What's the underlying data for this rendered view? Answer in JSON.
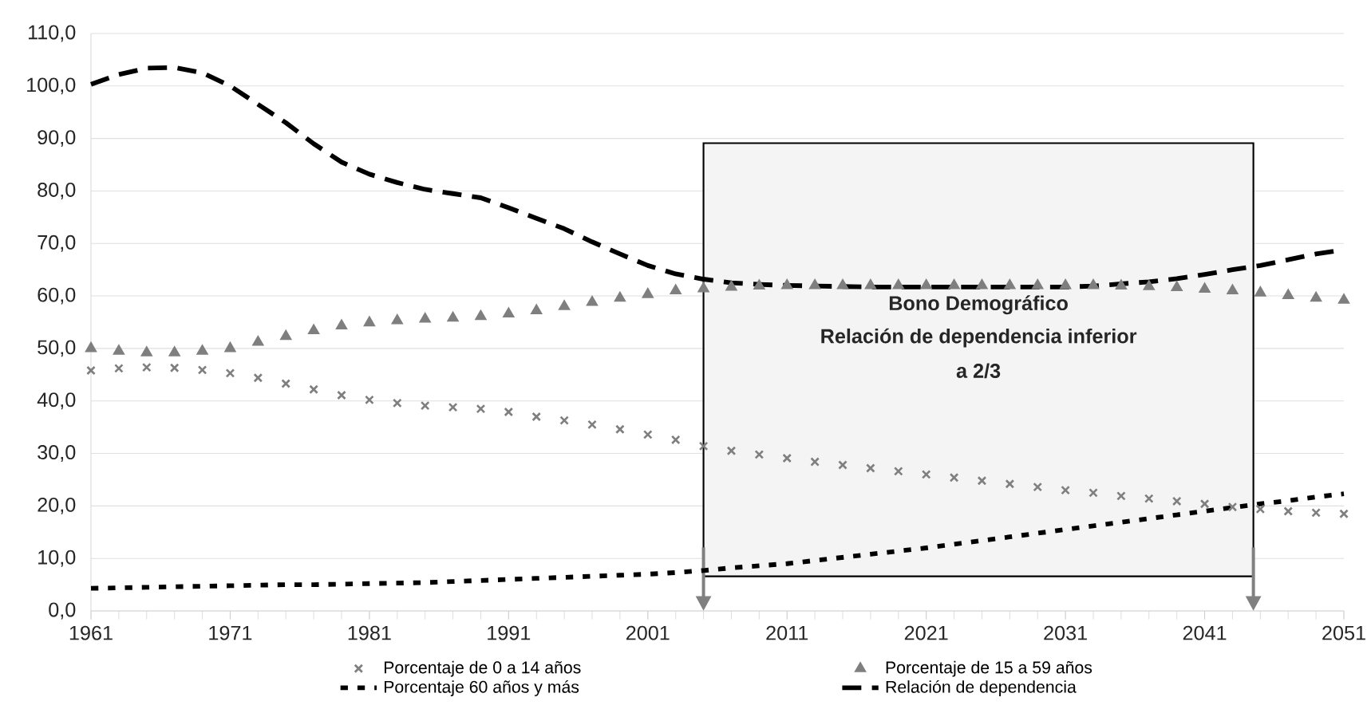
{
  "chart_data": {
    "type": "line",
    "x": [
      1961,
      1963,
      1965,
      1967,
      1969,
      1971,
      1973,
      1975,
      1977,
      1979,
      1981,
      1983,
      1985,
      1987,
      1989,
      1991,
      1993,
      1995,
      1997,
      1999,
      2001,
      2003,
      2005,
      2007,
      2009,
      2011,
      2013,
      2015,
      2017,
      2019,
      2021,
      2023,
      2025,
      2027,
      2029,
      2031,
      2033,
      2035,
      2037,
      2039,
      2041,
      2043,
      2045,
      2047,
      2049,
      2051
    ],
    "series": [
      {
        "name": "Porcentaje de 0 a 14 años",
        "type": "scatter",
        "marker": "cross",
        "color": "#7f7f7f",
        "values": [
          45.8,
          46.2,
          46.4,
          46.3,
          45.9,
          45.3,
          44.4,
          43.3,
          42.2,
          41.1,
          40.2,
          39.6,
          39.1,
          38.8,
          38.5,
          37.9,
          37.0,
          36.3,
          35.5,
          34.6,
          33.6,
          32.6,
          31.4,
          30.5,
          29.8,
          29.1,
          28.4,
          27.8,
          27.2,
          26.6,
          26.0,
          25.4,
          24.8,
          24.2,
          23.6,
          23.0,
          22.5,
          21.9,
          21.4,
          20.9,
          20.4,
          19.8,
          19.4,
          19.0,
          18.7,
          18.5
        ]
      },
      {
        "name": "Porcentaje de 15 a 59 años",
        "type": "scatter",
        "marker": "triangle",
        "color": "#7f7f7f",
        "values": [
          50.0,
          49.5,
          49.2,
          49.2,
          49.5,
          50.0,
          51.2,
          52.3,
          53.4,
          54.3,
          54.9,
          55.3,
          55.6,
          55.8,
          56.1,
          56.6,
          57.2,
          58.0,
          58.8,
          59.6,
          60.3,
          61.0,
          61.4,
          61.7,
          61.9,
          62.0,
          62.0,
          62.0,
          62.0,
          62.0,
          62.0,
          62.0,
          62.0,
          62.0,
          62.0,
          62.0,
          62.0,
          61.9,
          61.8,
          61.6,
          61.3,
          61.0,
          60.6,
          60.1,
          59.6,
          59.2
        ]
      },
      {
        "name": "Porcentaje 60 años y más",
        "line_style": "dotted",
        "color": "#000000",
        "values": [
          4.3,
          4.4,
          4.5,
          4.6,
          4.7,
          4.8,
          4.9,
          5.0,
          5.0,
          5.1,
          5.2,
          5.3,
          5.4,
          5.6,
          5.8,
          6.0,
          6.2,
          6.4,
          6.6,
          6.8,
          7.0,
          7.3,
          7.7,
          8.2,
          8.6,
          9.0,
          9.6,
          10.2,
          10.8,
          11.4,
          12.0,
          12.7,
          13.4,
          14.1,
          14.8,
          15.5,
          16.2,
          16.9,
          17.6,
          18.3,
          19.0,
          19.7,
          20.4,
          21.0,
          21.7,
          22.3
        ]
      },
      {
        "name": "Relación de dependencia",
        "line_style": "dashed",
        "color": "#000000",
        "values": [
          100.3,
          102.2,
          103.4,
          103.5,
          102.5,
          100.0,
          96.5,
          93.0,
          89.0,
          85.5,
          83.2,
          81.6,
          80.3,
          79.5,
          78.7,
          76.8,
          74.8,
          72.8,
          70.3,
          68.0,
          65.8,
          64.2,
          63.2,
          62.5,
          62.2,
          62.0,
          61.9,
          61.8,
          61.7,
          61.7,
          61.7,
          61.7,
          61.7,
          61.7,
          61.7,
          61.7,
          61.9,
          62.3,
          62.7,
          63.3,
          64.1,
          65.0,
          65.8,
          66.9,
          68.0,
          68.8
        ]
      }
    ],
    "xlim": [
      1961,
      2051
    ],
    "xticks": [
      1961,
      1971,
      1981,
      1991,
      2001,
      2011,
      2021,
      2031,
      2041,
      2051
    ],
    "ylim": [
      0,
      110
    ],
    "yticks": [
      {
        "value": 0,
        "label": "0,0"
      },
      {
        "value": 10,
        "label": "10,0"
      },
      {
        "value": 20,
        "label": "20,0"
      },
      {
        "value": 30,
        "label": "30,0"
      },
      {
        "value": 40,
        "label": "40,0"
      },
      {
        "value": 50,
        "label": "50,0"
      },
      {
        "value": 60,
        "label": "60,0"
      },
      {
        "value": 70,
        "label": "70,0"
      },
      {
        "value": 80,
        "label": "80,0"
      },
      {
        "value": 90,
        "label": "90,0"
      },
      {
        "value": 100,
        "label": "100,0"
      },
      {
        "value": 110,
        "label": "110,0"
      }
    ],
    "grid": "y",
    "legend": "bottom",
    "bands": [
      {
        "axis": "x",
        "from": 2005,
        "to": 2044.5,
        "color": "#f4f4f4"
      }
    ],
    "annotations": [
      "Bono Demográfico",
      "Relación de dependencia inferior",
      "a 2/3"
    ]
  }
}
